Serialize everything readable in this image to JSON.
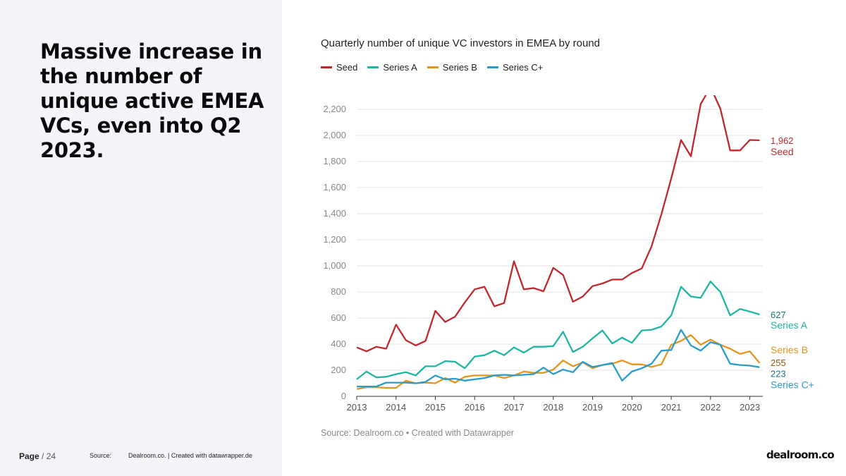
{
  "slide": {
    "headline": "Massive increase in the number of unique active EMEA VCs, even into Q2 2023.",
    "page_label": "Page",
    "page_number": "/ 24",
    "source_label": "Source:",
    "source_text": "Dealroom.co. | Created with datawrapper.de",
    "logo_text": "dealroom.co"
  },
  "colors": {
    "seed": "#c0282d",
    "series_a": "#1fb5a3",
    "series_b": "#e5951f",
    "series_c": "#2a9ccb",
    "left_panel": "#f3f5fa"
  },
  "chart_data": {
    "type": "line",
    "title": "Quarterly number of unique VC investors in EMEA by round",
    "source": "Source: Dealroom.co • Created with Datawrapper",
    "ylim": [
      0,
      2200
    ],
    "yticks": [
      0,
      200,
      400,
      600,
      800,
      "1,000",
      "1,200",
      "1,400",
      "1,600",
      "1,800",
      "2,000",
      "2,200"
    ],
    "xlim": [
      2013,
      2023.33
    ],
    "xticks": [
      2013,
      2014,
      2015,
      2016,
      2017,
      2018,
      2019,
      2020,
      2021,
      2022,
      2023
    ],
    "legend_position": "top-left",
    "grid": true,
    "x": [
      2013.0,
      2013.25,
      2013.5,
      2013.75,
      2014.0,
      2014.25,
      2014.5,
      2014.75,
      2015.0,
      2015.25,
      2015.5,
      2015.75,
      2016.0,
      2016.25,
      2016.5,
      2016.75,
      2017.0,
      2017.25,
      2017.5,
      2017.75,
      2018.0,
      2018.25,
      2018.5,
      2018.75,
      2019.0,
      2019.25,
      2019.5,
      2019.75,
      2020.0,
      2020.25,
      2020.5,
      2020.75,
      2021.0,
      2021.25,
      2021.5,
      2021.75,
      2022.0,
      2022.25,
      2022.5,
      2022.75,
      2023.0,
      2023.25
    ],
    "series": [
      {
        "name": "Seed",
        "color_key": "seed",
        "end_value": "1,962",
        "end_label": "Seed",
        "values": [
          375,
          345,
          380,
          365,
          550,
          430,
          390,
          425,
          655,
          570,
          610,
          720,
          820,
          840,
          690,
          715,
          1035,
          820,
          830,
          805,
          985,
          930,
          725,
          765,
          845,
          865,
          895,
          895,
          945,
          980,
          1150,
          1395,
          1670,
          1965,
          1840,
          2240,
          2370,
          2205,
          1885,
          1885,
          1965,
          1962
        ]
      },
      {
        "name": "Series A",
        "color_key": "series_a",
        "end_value": "627",
        "end_label": "Series A",
        "values": [
          130,
          190,
          145,
          150,
          170,
          185,
          160,
          230,
          230,
          270,
          265,
          215,
          305,
          315,
          350,
          315,
          375,
          335,
          380,
          380,
          385,
          495,
          340,
          380,
          445,
          505,
          405,
          450,
          410,
          505,
          510,
          535,
          620,
          840,
          765,
          755,
          880,
          800,
          620,
          670,
          650,
          627
        ]
      },
      {
        "name": "Series B",
        "color_key": "series_b",
        "end_value": "255",
        "end_label": "Series B",
        "values": [
          55,
          70,
          70,
          65,
          65,
          120,
          100,
          105,
          100,
          140,
          105,
          150,
          160,
          160,
          160,
          140,
          160,
          190,
          180,
          180,
          205,
          275,
          230,
          260,
          215,
          240,
          250,
          275,
          245,
          245,
          225,
          245,
          395,
          425,
          470,
          395,
          435,
          395,
          365,
          325,
          345,
          255
        ]
      },
      {
        "name": "Series C+",
        "color_key": "series_c",
        "end_value": "223",
        "end_label": "Series C+",
        "values": [
          75,
          75,
          75,
          105,
          105,
          105,
          100,
          110,
          160,
          130,
          135,
          120,
          130,
          140,
          160,
          165,
          160,
          165,
          170,
          220,
          170,
          205,
          185,
          265,
          225,
          240,
          255,
          120,
          190,
          215,
          250,
          350,
          355,
          510,
          390,
          350,
          415,
          395,
          250,
          240,
          235,
          223
        ]
      }
    ]
  }
}
